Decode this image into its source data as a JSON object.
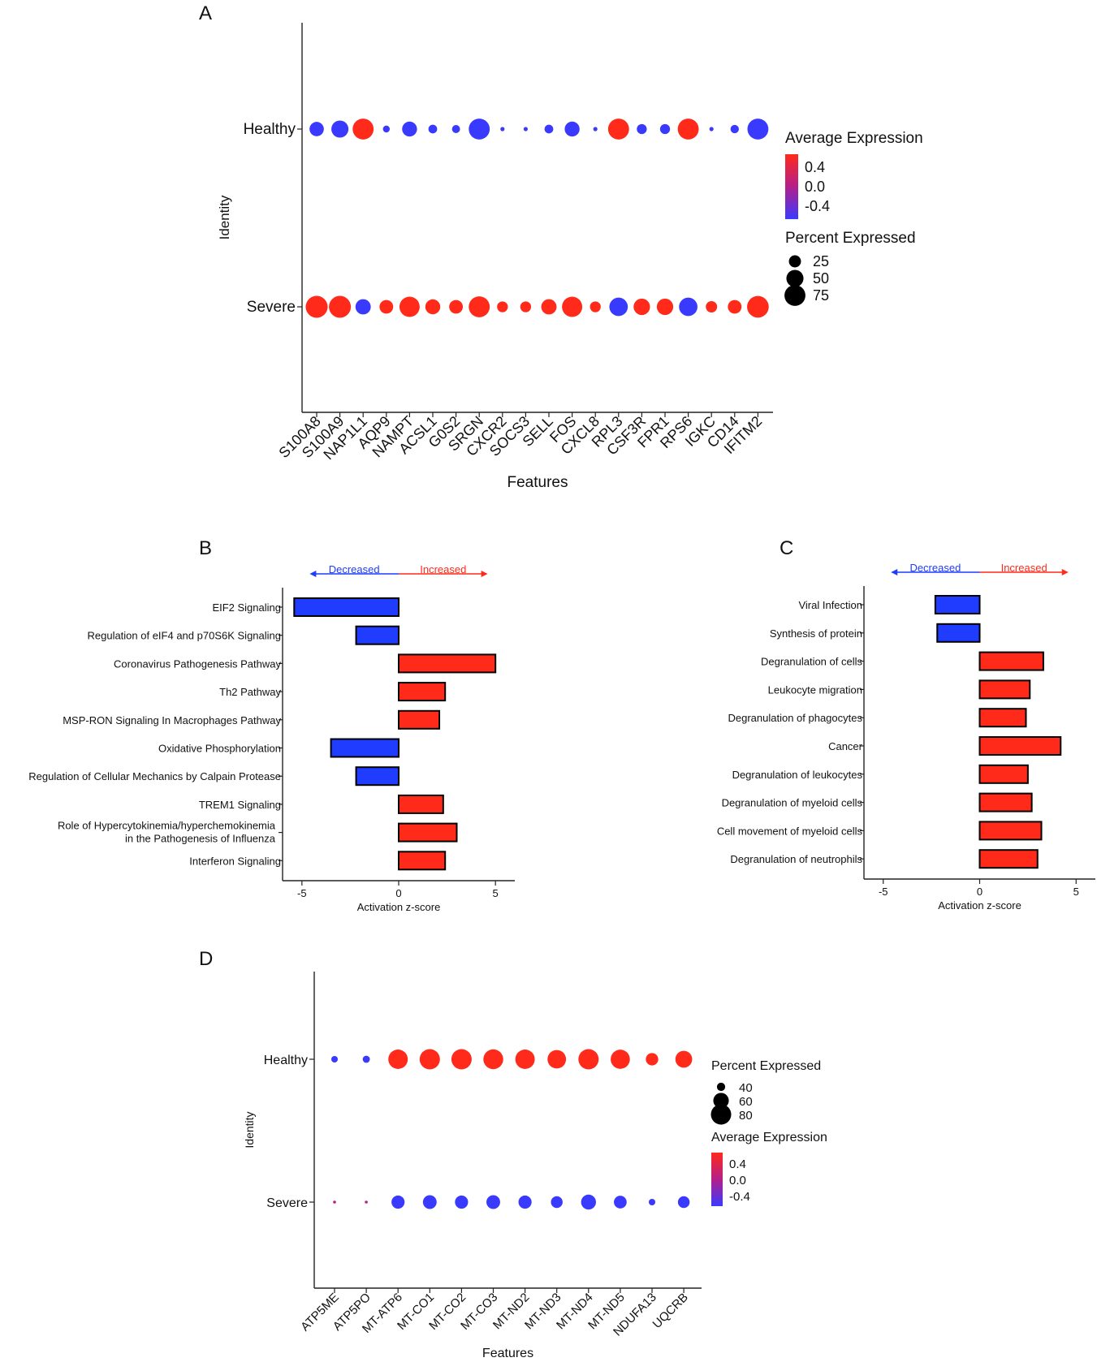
{
  "panels": {
    "A": {
      "letter": "A"
    },
    "B": {
      "letter": "B"
    },
    "C": {
      "letter": "C"
    },
    "D": {
      "letter": "D"
    }
  },
  "chart_data": [
    {
      "id": "A",
      "type": "scatter",
      "subtype": "dotplot",
      "features": [
        "S100A8",
        "S100A9",
        "NAP1L1",
        "AQP9",
        "NAMPT",
        "ACSL1",
        "G0S2",
        "SRGN",
        "CXCR2",
        "SOCS3",
        "SELL",
        "FOS",
        "CXCL8",
        "RPL3",
        "CSF3R",
        "FPR1",
        "RPS6",
        "IGKC",
        "CD14",
        "IFITM2"
      ],
      "identities": [
        "Healthy",
        "Severe"
      ],
      "xlabel": "Features",
      "ylabel": "Identity",
      "percent_expressed": {
        "Healthy": [
          35,
          50,
          75,
          8,
          38,
          13,
          11,
          75,
          3,
          3,
          13,
          38,
          3,
          75,
          17,
          17,
          75,
          3,
          12,
          75
        ],
        "Severe": [
          82,
          82,
          40,
          32,
          70,
          38,
          32,
          75,
          20,
          20,
          40,
          70,
          20,
          58,
          46,
          46,
          58,
          22,
          32,
          80
        ]
      },
      "average_expression": {
        "Healthy": [
          -0.5,
          -0.5,
          0.5,
          -0.5,
          -0.5,
          -0.5,
          -0.5,
          -0.5,
          -0.5,
          -0.5,
          -0.5,
          -0.5,
          -0.5,
          0.5,
          -0.5,
          -0.5,
          0.5,
          -0.5,
          -0.5,
          -0.5
        ],
        "Severe": [
          0.5,
          0.5,
          -0.5,
          0.5,
          0.5,
          0.5,
          0.5,
          0.5,
          0.5,
          0.5,
          0.5,
          0.5,
          0.5,
          -0.5,
          0.5,
          0.5,
          -0.5,
          0.5,
          0.5,
          0.5
        ]
      },
      "legend": {
        "color_title": "Average Expression",
        "color_ticks": [
          "0.4",
          "0.0",
          "-0.4"
        ],
        "size_title": "Percent Expressed",
        "size_ticks": [
          "25",
          "50",
          "75"
        ],
        "size_values": [
          25,
          50,
          75
        ],
        "position": "right"
      }
    },
    {
      "id": "B",
      "type": "bar",
      "orientation": "horizontal",
      "categories": [
        "EIF2 Signaling",
        "Regulation of eIF4 and p70S6K Signaling",
        "Coronavirus Pathogenesis Pathway",
        "Th2 Pathway",
        "MSP-RON Signaling In Macrophages Pathway",
        "Oxidative Phosphorylation",
        "Regulation of Cellular Mechanics by Calpain Protease",
        "TREM1 Signaling",
        "Role of Hypercytokinemia/hyperchemokinemia in the Pathogenesis of Influenza",
        "Interferon Signaling"
      ],
      "category_lines": [
        [
          "EIF2 Signaling"
        ],
        [
          "Regulation of eIF4 and p70S6K Signaling"
        ],
        [
          "Coronavirus Pathogenesis Pathway"
        ],
        [
          "Th2 Pathway"
        ],
        [
          "MSP-RON Signaling In Macrophages Pathway"
        ],
        [
          "Oxidative Phosphorylation"
        ],
        [
          "Regulation of Cellular Mechanics by Calpain Protease"
        ],
        [
          "TREM1 Signaling"
        ],
        [
          "Role of Hypercytokinemia/hyperchemokinemia",
          "in the Pathogenesis of Influenza"
        ],
        [
          "Interferon Signaling"
        ]
      ],
      "values": [
        -5.4,
        -2.2,
        5.0,
        2.4,
        2.1,
        -3.5,
        -2.2,
        2.3,
        3.0,
        2.4
      ],
      "xlabel": "Activation z-score",
      "xlim": [
        -6,
        6
      ],
      "xticks": [
        "-5",
        "0",
        "5"
      ],
      "xtick_values": [
        -5,
        0,
        5
      ],
      "direction_labels": {
        "decreased": "Decreased",
        "increased": "Increased"
      }
    },
    {
      "id": "C",
      "type": "bar",
      "orientation": "horizontal",
      "categories": [
        "Viral Infection",
        "Synthesis of protein",
        "Degranulation of cells",
        "Leukocyte migration",
        "Degranulation of phagocytes",
        "Cancer",
        "Degranulation of leukocytes",
        "Degranulation of myeloid cells",
        "Cell movement of myeloid cells",
        "Degranulation of neutrophils"
      ],
      "values": [
        -2.3,
        -2.2,
        3.3,
        2.6,
        2.4,
        4.2,
        2.5,
        2.7,
        3.2,
        3.0
      ],
      "xlabel": "Activation z-score",
      "xlim": [
        -6,
        6
      ],
      "xticks": [
        "-5",
        "0",
        "5"
      ],
      "xtick_values": [
        -5,
        0,
        5
      ],
      "direction_labels": {
        "decreased": "Decreased",
        "increased": "Increased"
      }
    },
    {
      "id": "D",
      "type": "scatter",
      "subtype": "dotplot",
      "features": [
        "ATP5ME",
        "ATP5PO",
        "MT-ATP6",
        "MT-CO1",
        "MT-CO2",
        "MT-CO3",
        "MT-ND2",
        "MT-ND3",
        "MT-ND4",
        "MT-ND5",
        "NDUFA13",
        "UQCRB"
      ],
      "identities": [
        "Healthy",
        "Severe"
      ],
      "xlabel": "Features",
      "ylabel": "Identity",
      "percent_expressed": {
        "Healthy": [
          37,
          38,
          76,
          80,
          80,
          78,
          76,
          72,
          80,
          75,
          50,
          65
        ],
        "Severe": [
          33,
          33,
          52,
          54,
          52,
          54,
          52,
          48,
          58,
          51,
          37,
          48
        ]
      },
      "average_expression": {
        "Healthy": [
          -0.5,
          -0.5,
          0.5,
          0.5,
          0.5,
          0.5,
          0.5,
          0.5,
          0.5,
          0.5,
          0.5,
          0.5
        ],
        "Severe": [
          0.0,
          0.0,
          -0.5,
          -0.5,
          -0.5,
          -0.5,
          -0.5,
          -0.5,
          -0.5,
          -0.5,
          -0.5,
          -0.5
        ]
      },
      "legend": {
        "size_title": "Percent Expressed",
        "size_ticks": [
          "40",
          "60",
          "80"
        ],
        "size_values": [
          40,
          60,
          80
        ],
        "color_title": "Average Expression",
        "color_ticks": [
          "0.4",
          "0.0",
          "-0.4"
        ],
        "position": "right"
      }
    }
  ]
}
